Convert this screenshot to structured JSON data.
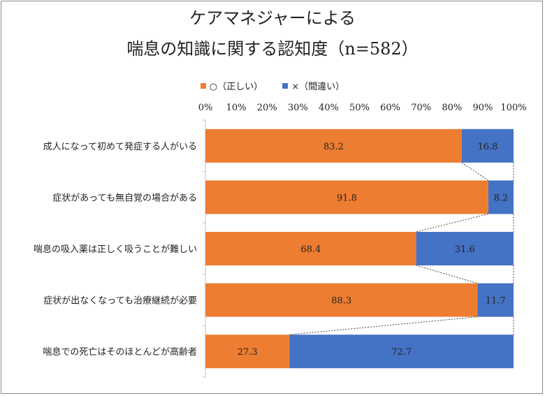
{
  "chart_data": {
    "type": "bar",
    "stacked": true,
    "orientation": "horizontal",
    "title_lines": [
      "ケアマネジャーによる",
      "喘息の知識に関する認知度（n=582）"
    ],
    "categories": [
      "成人になって初めて発症する人がいる",
      "症状があっても無自覚の場合がある",
      "喘息の吸入薬は正しく吸うことが難しい",
      "症状が出なくなっても治療継続が必要",
      "喘息での死亡はそのほとんどが高齢者"
    ],
    "series": [
      {
        "name": "○（正しい）",
        "color": "#ed7d31",
        "values": [
          83.2,
          91.8,
          68.4,
          88.3,
          27.3
        ]
      },
      {
        "name": "×（間違い）",
        "color": "#4472c4",
        "values": [
          16.8,
          8.2,
          31.6,
          11.7,
          72.7
        ]
      }
    ],
    "xlim": [
      0,
      100
    ],
    "x_ticks": [
      "0%",
      "10%",
      "20%",
      "30%",
      "40%",
      "50%",
      "60%",
      "70%",
      "80%",
      "90%",
      "100%"
    ],
    "series_lines": true,
    "legend_position": "top"
  }
}
